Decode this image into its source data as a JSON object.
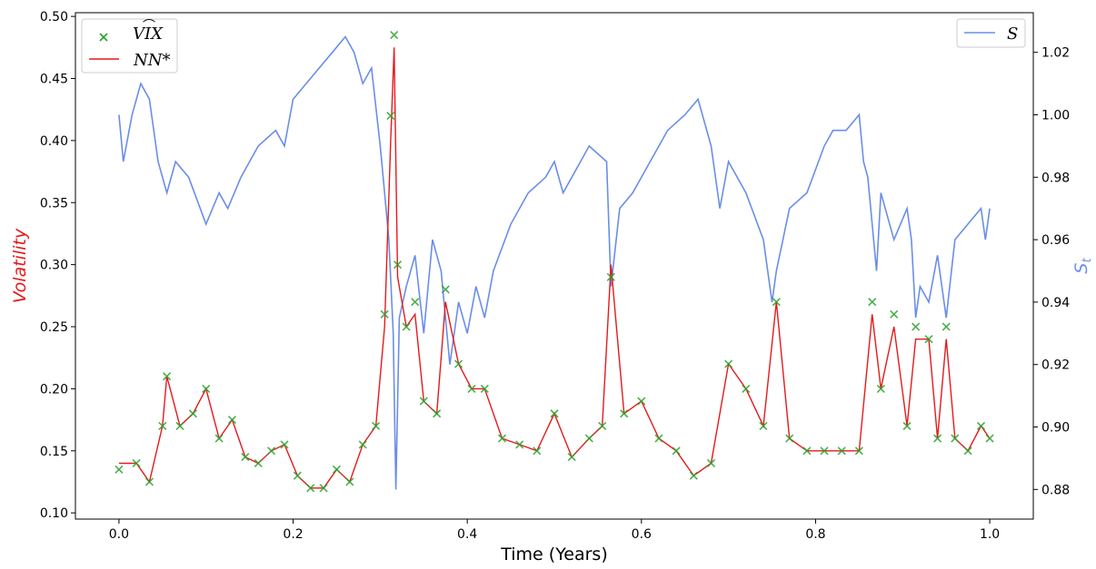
{
  "chart_data": {
    "type": "line",
    "xlabel": "Time (Years)",
    "ylabel_left": "Volatility",
    "ylabel_right": "S_t",
    "ylabel_right_main": "S",
    "ylabel_right_sub": "t",
    "xlim": [
      -0.05,
      1.05
    ],
    "ylim_left": [
      0.095,
      0.503
    ],
    "ylim_right": [
      0.8705,
      1.0327
    ],
    "x_ticks": [
      "0.0",
      "0.2",
      "0.4",
      "0.6",
      "0.8",
      "1.0"
    ],
    "x_tick_values": [
      0.0,
      0.2,
      0.4,
      0.6,
      0.8,
      1.0
    ],
    "y_left_ticks": [
      "0.10",
      "0.15",
      "0.20",
      "0.25",
      "0.30",
      "0.35",
      "0.40",
      "0.45",
      "0.50"
    ],
    "y_left_tick_values": [
      0.1,
      0.15,
      0.2,
      0.25,
      0.3,
      0.35,
      0.4,
      0.45,
      0.5
    ],
    "y_right_ticks": [
      "0.88",
      "0.90",
      "0.92",
      "0.94",
      "0.96",
      "0.98",
      "1.00",
      "1.02"
    ],
    "y_right_tick_values": [
      0.88,
      0.9,
      0.92,
      0.94,
      0.96,
      0.98,
      1.0,
      1.02
    ],
    "legend_left": {
      "placement": "top-left",
      "entries": [
        {
          "label": "VIX",
          "marker": "x",
          "color": "#2ca02c"
        },
        {
          "label": "NN*",
          "marker": "line",
          "color": "#e41a1c"
        }
      ]
    },
    "legend_right": {
      "placement": "top-right",
      "entries": [
        {
          "label": "S",
          "marker": "line",
          "color": "#6a8ee8"
        }
      ]
    },
    "colors": {
      "vix": "#2ca02c",
      "nn": "#e41a1c",
      "s": "#6a8ee8",
      "left_label": "#e41a1c",
      "right_label": "#6a8ee8"
    },
    "series": [
      {
        "name": "VIX",
        "axis": "left",
        "style": "markers-x",
        "x": [
          0.0,
          0.02,
          0.035,
          0.05,
          0.055,
          0.07,
          0.085,
          0.1,
          0.115,
          0.13,
          0.145,
          0.16,
          0.175,
          0.19,
          0.205,
          0.22,
          0.235,
          0.25,
          0.265,
          0.28,
          0.295,
          0.305,
          0.312,
          0.316,
          0.32,
          0.33,
          0.34,
          0.35,
          0.365,
          0.375,
          0.39,
          0.405,
          0.42,
          0.44,
          0.46,
          0.48,
          0.5,
          0.52,
          0.54,
          0.555,
          0.565,
          0.58,
          0.6,
          0.62,
          0.64,
          0.66,
          0.68,
          0.7,
          0.72,
          0.74,
          0.755,
          0.77,
          0.79,
          0.81,
          0.83,
          0.85,
          0.865,
          0.875,
          0.89,
          0.905,
          0.915,
          0.93,
          0.94,
          0.95,
          0.96,
          0.975,
          0.99,
          1.0
        ],
        "values": [
          0.135,
          0.14,
          0.125,
          0.17,
          0.21,
          0.17,
          0.18,
          0.2,
          0.16,
          0.175,
          0.145,
          0.14,
          0.15,
          0.155,
          0.13,
          0.12,
          0.12,
          0.135,
          0.125,
          0.155,
          0.17,
          0.26,
          0.42,
          0.485,
          0.3,
          0.25,
          0.27,
          0.19,
          0.18,
          0.28,
          0.22,
          0.2,
          0.2,
          0.16,
          0.155,
          0.15,
          0.18,
          0.145,
          0.16,
          0.17,
          0.29,
          0.18,
          0.19,
          0.16,
          0.15,
          0.13,
          0.14,
          0.22,
          0.2,
          0.17,
          0.27,
          0.16,
          0.15,
          0.15,
          0.15,
          0.15,
          0.27,
          0.2,
          0.26,
          0.17,
          0.25,
          0.24,
          0.16,
          0.25,
          0.16,
          0.15,
          0.17,
          0.16
        ]
      },
      {
        "name": "NN*",
        "axis": "left",
        "style": "line",
        "x": [
          0.0,
          0.02,
          0.035,
          0.05,
          0.055,
          0.07,
          0.085,
          0.1,
          0.115,
          0.13,
          0.145,
          0.16,
          0.175,
          0.19,
          0.205,
          0.22,
          0.235,
          0.25,
          0.265,
          0.28,
          0.295,
          0.305,
          0.312,
          0.316,
          0.32,
          0.33,
          0.34,
          0.35,
          0.365,
          0.375,
          0.39,
          0.405,
          0.42,
          0.44,
          0.46,
          0.48,
          0.5,
          0.52,
          0.54,
          0.555,
          0.565,
          0.58,
          0.6,
          0.62,
          0.64,
          0.66,
          0.68,
          0.7,
          0.72,
          0.74,
          0.755,
          0.77,
          0.79,
          0.81,
          0.83,
          0.85,
          0.865,
          0.875,
          0.89,
          0.905,
          0.915,
          0.93,
          0.94,
          0.95,
          0.96,
          0.975,
          0.99,
          1.0
        ],
        "values": [
          0.14,
          0.14,
          0.125,
          0.17,
          0.21,
          0.17,
          0.18,
          0.2,
          0.16,
          0.175,
          0.145,
          0.14,
          0.15,
          0.155,
          0.13,
          0.12,
          0.12,
          0.135,
          0.125,
          0.155,
          0.17,
          0.25,
          0.4,
          0.475,
          0.29,
          0.25,
          0.26,
          0.19,
          0.18,
          0.27,
          0.22,
          0.2,
          0.2,
          0.16,
          0.155,
          0.15,
          0.18,
          0.145,
          0.16,
          0.17,
          0.3,
          0.18,
          0.19,
          0.16,
          0.15,
          0.13,
          0.14,
          0.22,
          0.2,
          0.17,
          0.27,
          0.16,
          0.15,
          0.15,
          0.15,
          0.15,
          0.26,
          0.2,
          0.25,
          0.17,
          0.24,
          0.24,
          0.16,
          0.24,
          0.16,
          0.15,
          0.17,
          0.16
        ]
      },
      {
        "name": "S",
        "axis": "right",
        "style": "line",
        "x": [
          0.0,
          0.005,
          0.015,
          0.025,
          0.035,
          0.045,
          0.055,
          0.065,
          0.08,
          0.1,
          0.115,
          0.125,
          0.14,
          0.16,
          0.18,
          0.19,
          0.2,
          0.215,
          0.23,
          0.245,
          0.26,
          0.27,
          0.28,
          0.29,
          0.3,
          0.305,
          0.31,
          0.315,
          0.318,
          0.322,
          0.33,
          0.34,
          0.35,
          0.36,
          0.37,
          0.38,
          0.39,
          0.4,
          0.41,
          0.42,
          0.43,
          0.45,
          0.47,
          0.49,
          0.5,
          0.51,
          0.52,
          0.54,
          0.56,
          0.565,
          0.575,
          0.59,
          0.61,
          0.63,
          0.65,
          0.665,
          0.67,
          0.68,
          0.69,
          0.7,
          0.72,
          0.74,
          0.75,
          0.755,
          0.77,
          0.79,
          0.81,
          0.82,
          0.835,
          0.85,
          0.855,
          0.86,
          0.87,
          0.875,
          0.89,
          0.905,
          0.91,
          0.915,
          0.92,
          0.93,
          0.94,
          0.95,
          0.96,
          0.975,
          0.99,
          0.995,
          1.0
        ],
        "values": [
          1.0,
          0.985,
          1.0,
          1.01,
          1.005,
          0.985,
          0.975,
          0.985,
          0.98,
          0.965,
          0.975,
          0.97,
          0.98,
          0.99,
          0.995,
          0.99,
          1.005,
          1.01,
          1.015,
          1.02,
          1.025,
          1.02,
          1.01,
          1.015,
          0.99,
          0.975,
          0.96,
          0.93,
          0.88,
          0.935,
          0.945,
          0.955,
          0.93,
          0.96,
          0.95,
          0.92,
          0.94,
          0.93,
          0.945,
          0.935,
          0.95,
          0.965,
          0.975,
          0.98,
          0.985,
          0.975,
          0.98,
          0.99,
          0.985,
          0.945,
          0.97,
          0.975,
          0.985,
          0.995,
          1.0,
          1.005,
          1.0,
          0.99,
          0.97,
          0.985,
          0.975,
          0.96,
          0.94,
          0.95,
          0.97,
          0.975,
          0.99,
          0.995,
          0.995,
          1.0,
          0.985,
          0.98,
          0.95,
          0.975,
          0.96,
          0.97,
          0.96,
          0.935,
          0.945,
          0.94,
          0.955,
          0.935,
          0.96,
          0.965,
          0.97,
          0.96,
          0.97
        ]
      }
    ]
  }
}
